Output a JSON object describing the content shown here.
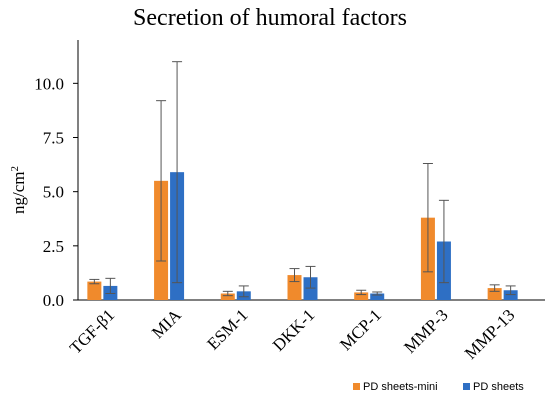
{
  "chart_data": {
    "type": "bar",
    "title": "Secretion of humoral factors",
    "xlabel": "",
    "ylabel": "ng/cm²",
    "ylim": [
      0,
      12
    ],
    "yticks": [
      "0.0",
      "2.5",
      "5.0",
      "7.5",
      "10.0"
    ],
    "categories": [
      "TGF-β1",
      "MIA",
      "ESM-1",
      "DKK-1",
      "MCP-1",
      "MMP-3",
      "MMP-13"
    ],
    "series": [
      {
        "name": "PD sheets-mini",
        "color": "#F08A2C",
        "values": [
          0.85,
          5.5,
          0.3,
          1.15,
          0.35,
          3.8,
          0.55
        ],
        "errors": [
          0.1,
          3.7,
          0.1,
          0.3,
          0.1,
          2.5,
          0.15
        ]
      },
      {
        "name": "PD sheets",
        "color": "#2E6FC4",
        "values": [
          0.65,
          5.9,
          0.4,
          1.05,
          0.3,
          2.7,
          0.45
        ],
        "errors": [
          0.35,
          5.1,
          0.25,
          0.5,
          0.07,
          1.9,
          0.2
        ]
      }
    ],
    "legend_position": "bottom-right",
    "grid": false
  }
}
